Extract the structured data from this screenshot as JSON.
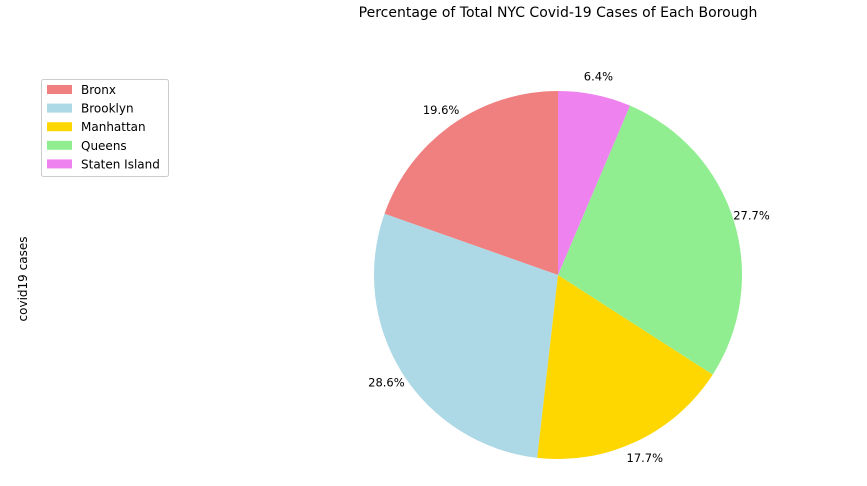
{
  "chart_data": {
    "type": "pie",
    "title": "Percentage of Total NYC Covid-19 Cases of Each Borough",
    "ylabel": "covid19 cases",
    "slices": [
      {
        "label": "Bronx",
        "percent": 19.6,
        "percent_label": "19.6%",
        "color": "#f08080"
      },
      {
        "label": "Brooklyn",
        "percent": 28.6,
        "percent_label": "28.6%",
        "color": "#add8e6"
      },
      {
        "label": "Manhattan",
        "percent": 17.7,
        "percent_label": "17.7%",
        "color": "#ffd700"
      },
      {
        "label": "Queens",
        "percent": 27.7,
        "percent_label": "27.7%",
        "color": "#90ee90"
      },
      {
        "label": "Staten Island",
        "percent": 6.4,
        "percent_label": "6.4%",
        "color": "#ee82ee"
      }
    ],
    "start_angle_deg": 90,
    "direction": "counterclockwise",
    "legend_position": "top-left"
  }
}
